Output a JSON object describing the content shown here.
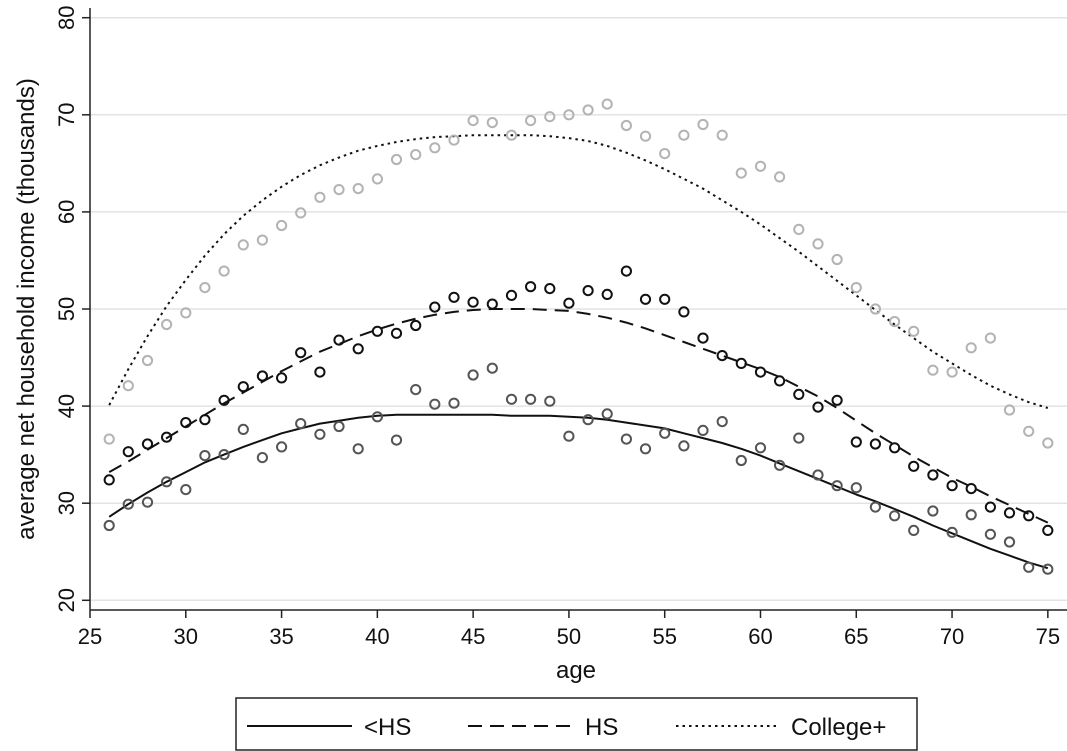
{
  "chart_data": {
    "type": "scatter",
    "title": "",
    "xlabel": "age",
    "ylabel": "average net household income (thousands)",
    "xlim": [
      25,
      76
    ],
    "ylim": [
      19,
      81
    ],
    "xticks": [
      "25",
      "30",
      "35",
      "40",
      "45",
      "50",
      "55",
      "60",
      "65",
      "70",
      "75"
    ],
    "yticks": [
      "20",
      "30",
      "40",
      "50",
      "60",
      "70",
      "80"
    ],
    "grid": "horizontal",
    "legend_position": "bottom",
    "x": [
      26,
      27,
      28,
      29,
      30,
      31,
      32,
      33,
      34,
      35,
      36,
      37,
      38,
      39,
      40,
      41,
      42,
      43,
      44,
      45,
      46,
      47,
      48,
      49,
      50,
      51,
      52,
      53,
      54,
      55,
      56,
      57,
      58,
      59,
      60,
      61,
      62,
      63,
      64,
      65,
      66,
      67,
      68,
      69,
      70,
      71,
      72,
      73,
      74,
      75
    ],
    "series": [
      {
        "name": "<HS",
        "line_style": "solid",
        "marker_color": "#555555",
        "scatter": [
          27.7,
          29.9,
          30.1,
          32.2,
          31.4,
          34.9,
          35.0,
          37.6,
          34.7,
          35.8,
          38.2,
          37.1,
          37.9,
          35.6,
          38.9,
          36.5,
          41.7,
          40.2,
          40.3,
          43.2,
          43.9,
          40.7,
          40.7,
          40.5,
          36.9,
          38.6,
          39.2,
          36.6,
          35.6,
          37.2,
          35.9,
          37.5,
          38.4,
          34.4,
          35.7,
          33.9,
          36.7,
          32.9,
          31.8,
          31.6,
          29.6,
          28.7,
          27.2,
          29.2,
          27.0,
          28.8,
          26.8,
          26.0,
          23.4,
          23.2
        ],
        "fit": [
          28.6,
          29.9,
          31.1,
          32.2,
          33.2,
          34.2,
          35.0,
          35.8,
          36.5,
          37.2,
          37.7,
          38.2,
          38.5,
          38.8,
          39.0,
          39.1,
          39.1,
          39.1,
          39.1,
          39.1,
          39.1,
          39.0,
          39.0,
          39.0,
          38.9,
          38.8,
          38.6,
          38.3,
          38.0,
          37.7,
          37.2,
          36.7,
          36.2,
          35.6,
          34.9,
          34.1,
          33.3,
          32.5,
          31.7,
          30.9,
          30.2,
          29.4,
          28.6,
          27.7,
          26.9,
          26.1,
          25.3,
          24.6,
          23.9,
          23.3
        ]
      },
      {
        "name": "HS",
        "line_style": "dashed",
        "marker_color": "#111111",
        "scatter": [
          32.4,
          35.3,
          36.1,
          36.8,
          38.3,
          38.6,
          40.6,
          42.0,
          43.1,
          42.9,
          45.5,
          43.5,
          46.8,
          45.9,
          47.7,
          47.5,
          48.3,
          50.2,
          51.2,
          50.7,
          50.5,
          51.4,
          52.3,
          52.1,
          50.6,
          51.9,
          51.5,
          53.9,
          51.0,
          51.0,
          49.7,
          47.0,
          45.2,
          44.4,
          43.5,
          42.6,
          41.2,
          39.9,
          40.6,
          36.3,
          36.1,
          35.7,
          33.8,
          32.9,
          31.8,
          31.5,
          29.6,
          29.0,
          28.7,
          27.2
        ],
        "fit": [
          33.2,
          34.3,
          35.5,
          36.7,
          37.9,
          39.1,
          40.3,
          41.4,
          42.5,
          43.6,
          44.6,
          45.6,
          46.4,
          47.2,
          47.9,
          48.5,
          49.0,
          49.4,
          49.7,
          49.9,
          50.0,
          50.0,
          50.0,
          49.9,
          49.8,
          49.5,
          49.1,
          48.6,
          48.0,
          47.3,
          46.6,
          45.9,
          45.2,
          44.5,
          43.8,
          43.0,
          42.0,
          41.0,
          39.8,
          38.5,
          37.2,
          36.0,
          34.8,
          33.7,
          32.6,
          31.7,
          30.7,
          29.8,
          28.9,
          28.0
        ]
      },
      {
        "name": "College+",
        "line_style": "dotted",
        "marker_color": "#b3b3b3",
        "scatter": [
          36.6,
          42.1,
          44.7,
          48.4,
          49.6,
          52.2,
          53.9,
          56.6,
          57.1,
          58.6,
          59.9,
          61.5,
          62.3,
          62.4,
          63.4,
          65.4,
          65.9,
          66.6,
          67.4,
          69.4,
          69.2,
          67.9,
          69.4,
          69.8,
          70.0,
          70.5,
          71.1,
          68.9,
          67.8,
          66.0,
          67.9,
          69.0,
          67.9,
          64.0,
          64.7,
          63.6,
          58.2,
          56.7,
          55.1,
          52.2,
          50.0,
          48.7,
          47.7,
          43.7,
          43.5,
          46.0,
          47.0,
          39.6,
          37.4,
          36.2
        ],
        "fit": [
          40.1,
          43.8,
          47.2,
          50.3,
          53.0,
          55.5,
          57.7,
          59.6,
          61.2,
          62.6,
          63.8,
          64.8,
          65.6,
          66.3,
          66.8,
          67.2,
          67.5,
          67.7,
          67.8,
          67.9,
          67.9,
          67.9,
          67.9,
          67.8,
          67.6,
          67.3,
          66.8,
          66.1,
          65.3,
          64.4,
          63.4,
          62.4,
          61.2,
          60.0,
          58.7,
          57.3,
          55.9,
          54.4,
          52.9,
          51.4,
          49.9,
          48.4,
          47.0,
          45.6,
          44.4,
          43.2,
          42.1,
          41.2,
          40.4,
          39.8
        ]
      }
    ]
  }
}
